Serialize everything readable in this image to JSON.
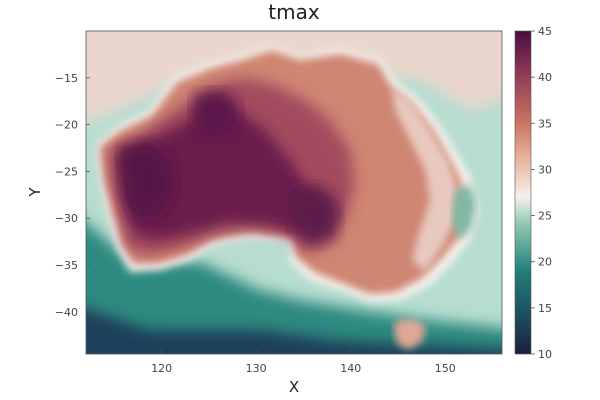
{
  "chart_data": {
    "type": "heatmap",
    "title": "tmax",
    "xlabel": "X",
    "ylabel": "Y",
    "xlim": [
      112,
      156
    ],
    "ylim": [
      -44.5,
      -10
    ],
    "x_ticks": [
      120,
      130,
      140,
      150
    ],
    "x_tick_labels": [
      "120",
      "130",
      "140",
      "150"
    ],
    "y_ticks": [
      -15,
      -20,
      -25,
      -30,
      -35,
      -40
    ],
    "y_tick_labels": [
      "−15",
      "−20",
      "−25",
      "−30",
      "−35",
      "−40"
    ],
    "colorbar": {
      "range": [
        10,
        45
      ],
      "ticks": [
        45,
        40,
        35,
        30,
        25,
        20,
        15,
        10
      ],
      "tick_labels": [
        "45",
        "40",
        "35",
        "30",
        "25",
        "20",
        "15",
        "10"
      ],
      "colors": [
        {
          "value": 10,
          "color": "#1b1e3e"
        },
        {
          "value": 14,
          "color": "#1d4c5c"
        },
        {
          "value": 19,
          "color": "#227e7a"
        },
        {
          "value": 24,
          "color": "#8ec8b0"
        },
        {
          "value": 27,
          "color": "#f4f0ec"
        },
        {
          "value": 31,
          "color": "#e9b6a0"
        },
        {
          "value": 35,
          "color": "#c9765f"
        },
        {
          "value": 40,
          "color": "#943d58"
        },
        {
          "value": 45,
          "color": "#4a0e3f"
        }
      ]
    },
    "grid": false,
    "legend": "none"
  }
}
